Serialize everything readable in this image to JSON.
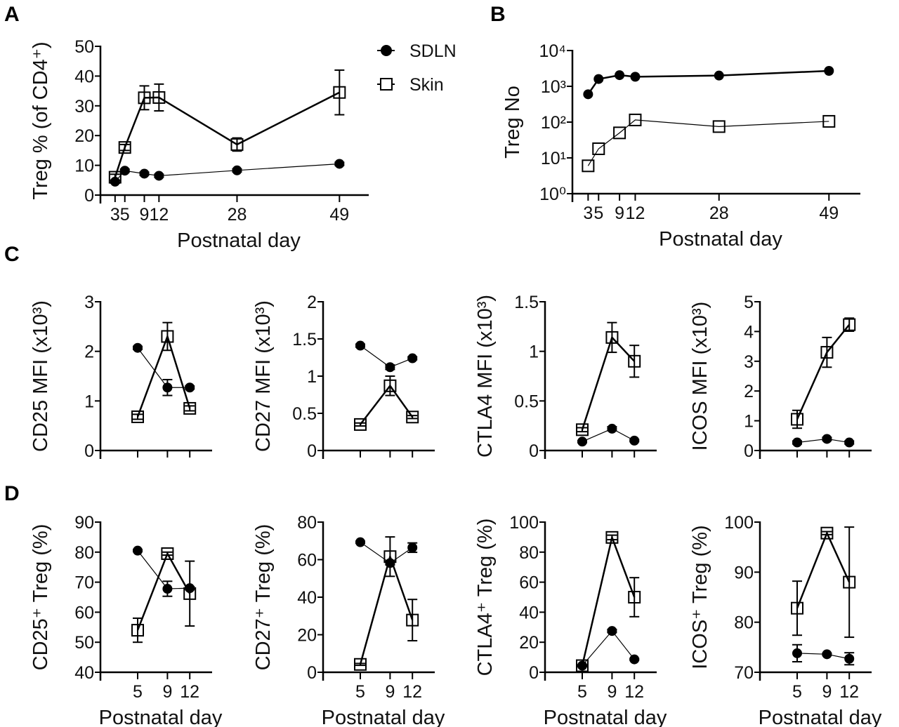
{
  "panel_labels": [
    "A",
    "B",
    "C",
    "D"
  ],
  "legend": [
    {
      "name": "SDLN",
      "marker": "filled-circle"
    },
    {
      "name": "Skin",
      "marker": "open-square"
    }
  ],
  "colors": {
    "ink": "#000000",
    "marker_fill_skin": "#ffffff"
  },
  "chart_data": [
    {
      "id": "A",
      "type": "line",
      "xlabel": "Postnatal day",
      "ylabel": "Treg % (of CD4⁺)",
      "xlim": [
        0,
        55
      ],
      "ylim": [
        0,
        50
      ],
      "yscale": "linear",
      "xticks": [
        3,
        5,
        9,
        12,
        28,
        49
      ],
      "xtick_labels": [
        "3",
        "5",
        "9",
        "12",
        "28",
        "49"
      ],
      "yticks": [
        0,
        10,
        20,
        30,
        40,
        50
      ],
      "ytick_labels": [
        "0",
        "10",
        "20",
        "30",
        "40",
        "50"
      ],
      "series": [
        {
          "name": "SDLN",
          "x": [
            3,
            5,
            9,
            12,
            28,
            49
          ],
          "y": [
            4.5,
            8.2,
            7.2,
            6.5,
            8.3,
            10.5
          ],
          "err": [
            0.5,
            0.5,
            0.5,
            0.5,
            0.5,
            0.5
          ]
        },
        {
          "name": "Skin",
          "x": [
            3,
            5,
            9,
            12,
            28,
            49
          ],
          "y": [
            6,
            16,
            32.7,
            32.8,
            17,
            34.5
          ],
          "err": [
            1,
            1,
            4,
            4.5,
            2.2,
            7.5
          ]
        }
      ]
    },
    {
      "id": "B",
      "type": "line",
      "xlabel": "Postnatal day",
      "ylabel": "Treg No",
      "xlim": [
        0,
        55
      ],
      "ylim": [
        1,
        10000
      ],
      "yscale": "log",
      "xticks": [
        3,
        5,
        9,
        12,
        28,
        49
      ],
      "xtick_labels": [
        "3",
        "5",
        "9",
        "12",
        "28",
        "49"
      ],
      "yticks": [
        1,
        10,
        100,
        1000,
        10000
      ],
      "ytick_labels": [
        "10⁰",
        "10¹",
        "10²",
        "10³",
        "10⁴"
      ],
      "series": [
        {
          "name": "SDLN",
          "x": [
            3,
            5,
            9,
            12,
            28,
            49
          ],
          "y": [
            600,
            1600,
            2050,
            1850,
            2000,
            2700
          ]
        },
        {
          "name": "Skin",
          "x": [
            3,
            5,
            9,
            12,
            28,
            49
          ],
          "y": [
            6,
            18,
            50,
            115,
            75,
            105
          ]
        }
      ]
    },
    {
      "id": "C1",
      "type": "line",
      "xlabel": "",
      "ylabel": "CD25 MFI (x10³)",
      "xlim": [
        0,
        15
      ],
      "ylim": [
        0,
        3
      ],
      "yscale": "linear",
      "xticks": [
        5,
        9,
        12
      ],
      "xtick_labels": [],
      "yticks": [
        0,
        1,
        2,
        3
      ],
      "ytick_labels": [
        "0",
        "1",
        "2",
        "3"
      ],
      "series": [
        {
          "name": "SDLN",
          "x": [
            5,
            9,
            12
          ],
          "y": [
            2.07,
            1.27,
            1.27
          ],
          "err": [
            0.03,
            0.16,
            0.03
          ]
        },
        {
          "name": "Skin",
          "x": [
            5,
            9,
            12
          ],
          "y": [
            0.68,
            2.3,
            0.85
          ],
          "err": [
            0.05,
            0.28,
            0.05
          ]
        }
      ]
    },
    {
      "id": "C2",
      "type": "line",
      "xlabel": "",
      "ylabel": "CD27 MFI (x10³)",
      "xlim": [
        0,
        15
      ],
      "ylim": [
        0,
        2
      ],
      "yscale": "linear",
      "xticks": [
        5,
        9,
        12
      ],
      "xtick_labels": [],
      "yticks": [
        0,
        0.5,
        1,
        1.5,
        2
      ],
      "ytick_labels": [
        "0",
        "0.5",
        "1",
        "1.5",
        "2"
      ],
      "series": [
        {
          "name": "SDLN",
          "x": [
            5,
            9,
            12
          ],
          "y": [
            1.41,
            1.12,
            1.24
          ],
          "err": [
            0.02,
            0.03,
            0.02
          ]
        },
        {
          "name": "Skin",
          "x": [
            5,
            9,
            12
          ],
          "y": [
            0.35,
            0.87,
            0.45
          ],
          "err": [
            0.02,
            0.13,
            0.02
          ]
        }
      ]
    },
    {
      "id": "C3",
      "type": "line",
      "xlabel": "",
      "ylabel": "CTLA4 MFI (x10³)",
      "xlim": [
        0,
        15
      ],
      "ylim": [
        0,
        1.5
      ],
      "yscale": "linear",
      "xticks": [
        5,
        9,
        12
      ],
      "xtick_labels": [],
      "yticks": [
        0,
        0.5,
        1,
        1.5
      ],
      "ytick_labels": [
        "0",
        "0.5",
        "1",
        "1.5"
      ],
      "series": [
        {
          "name": "SDLN",
          "x": [
            5,
            9,
            12
          ],
          "y": [
            0.09,
            0.22,
            0.1
          ],
          "err": [
            0.01,
            0.02,
            0.01
          ]
        },
        {
          "name": "Skin",
          "x": [
            5,
            9,
            12
          ],
          "y": [
            0.21,
            1.14,
            0.9
          ],
          "err": [
            0.02,
            0.15,
            0.16
          ]
        }
      ]
    },
    {
      "id": "C4",
      "type": "line",
      "xlabel": "",
      "ylabel": "ICOS MFI (x10³)",
      "xlim": [
        0,
        15
      ],
      "ylim": [
        0,
        5
      ],
      "yscale": "linear",
      "xticks": [
        5,
        9,
        12
      ],
      "xtick_labels": [],
      "yticks": [
        0,
        1,
        2,
        3,
        4,
        5
      ],
      "ytick_labels": [
        "0",
        "1",
        "2",
        "3",
        "4",
        "5"
      ],
      "series": [
        {
          "name": "SDLN",
          "x": [
            5,
            9,
            12
          ],
          "y": [
            0.27,
            0.39,
            0.27
          ],
          "err": [
            0.05,
            0.05,
            0.05
          ]
        },
        {
          "name": "Skin",
          "x": [
            5,
            9,
            12
          ],
          "y": [
            1.05,
            3.3,
            4.23
          ],
          "err": [
            0.3,
            0.5,
            0.22
          ]
        }
      ]
    },
    {
      "id": "D1",
      "type": "line",
      "xlabel": "Postnatal day",
      "ylabel": "CD25⁺ Treg (%)",
      "xlim": [
        0,
        15
      ],
      "ylim": [
        40,
        90
      ],
      "yscale": "linear",
      "xticks": [
        5,
        9,
        12
      ],
      "xtick_labels": [
        "5",
        "9",
        "12"
      ],
      "yticks": [
        40,
        50,
        60,
        70,
        80,
        90
      ],
      "ytick_labels": [
        "40",
        "50",
        "60",
        "70",
        "80",
        "90"
      ],
      "series": [
        {
          "name": "SDLN",
          "x": [
            5,
            9,
            12
          ],
          "y": [
            80.5,
            67.8,
            68
          ],
          "err": [
            0.3,
            2.5,
            0.5
          ]
        },
        {
          "name": "Skin",
          "x": [
            5,
            9,
            12
          ],
          "y": [
            54,
            79.5,
            66.2
          ],
          "err": [
            4,
            0.5,
            10.8
          ]
        }
      ]
    },
    {
      "id": "D2",
      "type": "line",
      "xlabel": "Postnatal day",
      "ylabel": "CD27⁺ Treg (%)",
      "xlim": [
        0,
        15
      ],
      "ylim": [
        0,
        80
      ],
      "yscale": "linear",
      "xticks": [
        5,
        9,
        12
      ],
      "xtick_labels": [
        "5",
        "9",
        "12"
      ],
      "yticks": [
        0,
        20,
        40,
        60,
        80
      ],
      "ytick_labels": [
        "0",
        "20",
        "40",
        "60",
        "80"
      ],
      "series": [
        {
          "name": "SDLN",
          "x": [
            5,
            9,
            12
          ],
          "y": [
            69.3,
            58.2,
            66.4
          ],
          "err": [
            0.5,
            1,
            2.5
          ]
        },
        {
          "name": "Skin",
          "x": [
            5,
            9,
            12
          ],
          "y": [
            4.2,
            61.6,
            27.8
          ],
          "err": [
            0.5,
            10.5,
            11
          ]
        }
      ]
    },
    {
      "id": "D3",
      "type": "line",
      "xlabel": "Postnatal day",
      "ylabel": "CTLA4⁺ Treg (%)",
      "xlim": [
        0,
        15
      ],
      "ylim": [
        0,
        100
      ],
      "yscale": "linear",
      "xticks": [
        5,
        9,
        12
      ],
      "xtick_labels": [
        "5",
        "9",
        "12"
      ],
      "yticks": [
        0,
        20,
        40,
        60,
        80,
        100
      ],
      "ytick_labels": [
        "0",
        "20",
        "40",
        "60",
        "80",
        "100"
      ],
      "series": [
        {
          "name": "SDLN",
          "x": [
            5,
            9,
            12
          ],
          "y": [
            4.4,
            27.5,
            8.6
          ],
          "err": [
            0.5,
            1,
            0.5
          ]
        },
        {
          "name": "Skin",
          "x": [
            5,
            9,
            12
          ],
          "y": [
            4.4,
            89.8,
            50
          ],
          "err": [
            0.5,
            1.5,
            13
          ]
        }
      ]
    },
    {
      "id": "D4",
      "type": "line",
      "xlabel": "Postnatal day",
      "ylabel": "ICOS⁺ Treg (%)",
      "xlim": [
        0,
        15
      ],
      "ylim": [
        70,
        100
      ],
      "yscale": "linear",
      "xticks": [
        5,
        9,
        12
      ],
      "xtick_labels": [
        "5",
        "9",
        "12"
      ],
      "yticks": [
        70,
        80,
        90,
        100
      ],
      "ytick_labels": [
        "70",
        "80",
        "90",
        "100"
      ],
      "series": [
        {
          "name": "SDLN",
          "x": [
            5,
            9,
            12
          ],
          "y": [
            73.8,
            73.6,
            72.7
          ],
          "err": [
            1.7,
            0.2,
            1.2
          ]
        },
        {
          "name": "Skin",
          "x": [
            5,
            9,
            12
          ],
          "y": [
            82.8,
            97.8,
            88
          ],
          "err": [
            5.4,
            0.3,
            11
          ]
        }
      ]
    }
  ]
}
